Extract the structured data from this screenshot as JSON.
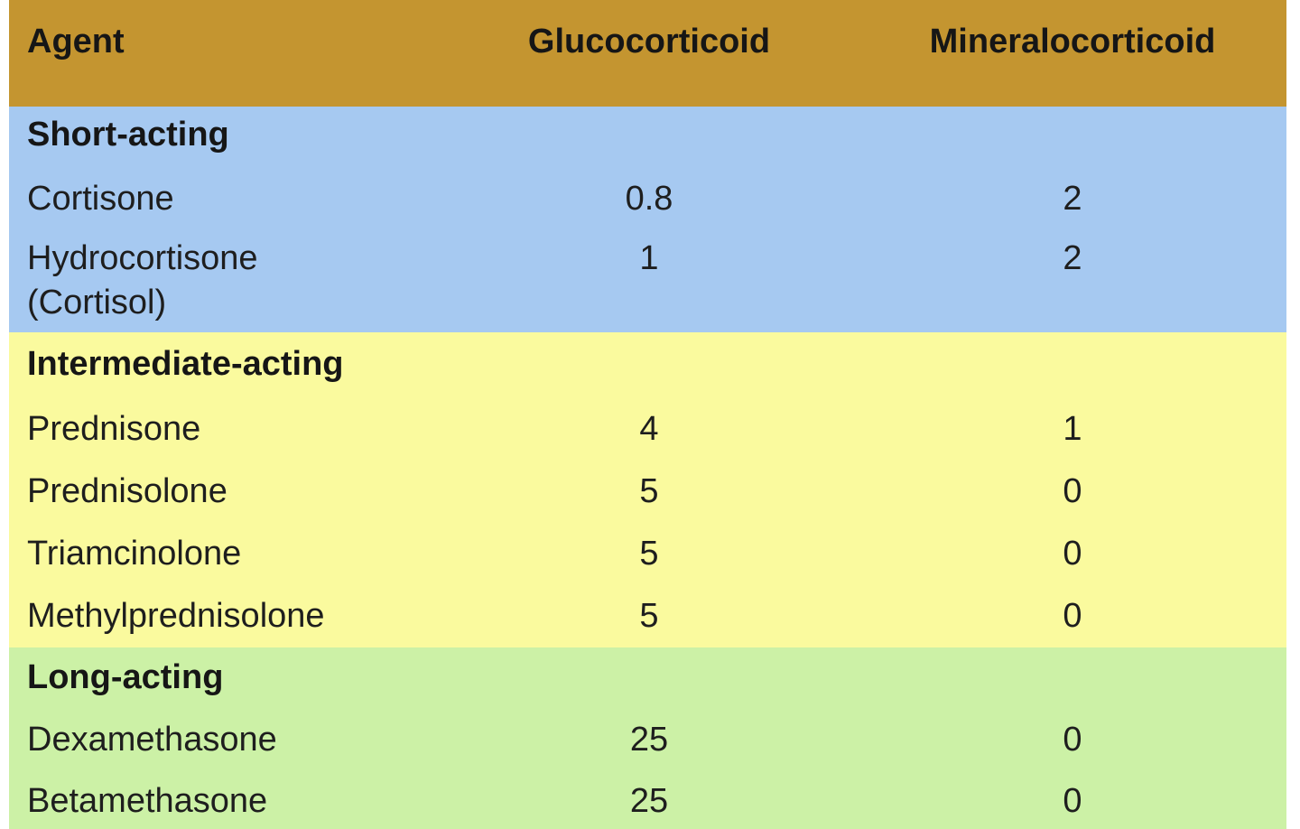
{
  "colors": {
    "header_background": "#c49530",
    "short_acting_background": "#a6c9f1",
    "intermediate_acting_background": "#fafa9e",
    "long_acting_background": "#ccf1a6",
    "text": "#1e1e1e"
  },
  "table": {
    "headers": {
      "agent": "Agent",
      "glucocorticoid": "Glucocorticoid",
      "mineralocorticoid": "Mineralocorticoid"
    },
    "sections": [
      {
        "name": "Short-acting",
        "rows": [
          {
            "agent": "Cortisone",
            "gluco": "0.8",
            "mineralo": "2"
          },
          {
            "agent": "Hydrocortisone\n(Cortisol)",
            "gluco": "1",
            "mineralo": "2"
          }
        ]
      },
      {
        "name": "Intermediate-acting",
        "rows": [
          {
            "agent": "Prednisone",
            "gluco": "4",
            "mineralo": "1"
          },
          {
            "agent": "Prednisolone",
            "gluco": "5",
            "mineralo": "0"
          },
          {
            "agent": "Triamcinolone",
            "gluco": "5",
            "mineralo": "0"
          },
          {
            "agent": "Methylprednisolone",
            "gluco": "5",
            "mineralo": "0"
          }
        ]
      },
      {
        "name": "Long-acting",
        "rows": [
          {
            "agent": "Dexamethasone",
            "gluco": "25",
            "mineralo": "0"
          },
          {
            "agent": "Betamethasone",
            "gluco": "25",
            "mineralo": "0"
          }
        ]
      }
    ]
  },
  "chart_data": {
    "type": "table",
    "columns": [
      "Agent",
      "Glucocorticoid",
      "Mineralocorticoid"
    ],
    "rows": [
      {
        "group": "Short-acting",
        "agent": "Cortisone",
        "glucocorticoid": 0.8,
        "mineralocorticoid": 2
      },
      {
        "group": "Short-acting",
        "agent": "Hydrocortisone (Cortisol)",
        "glucocorticoid": 1,
        "mineralocorticoid": 2
      },
      {
        "group": "Intermediate-acting",
        "agent": "Prednisone",
        "glucocorticoid": 4,
        "mineralocorticoid": 1
      },
      {
        "group": "Intermediate-acting",
        "agent": "Prednisolone",
        "glucocorticoid": 5,
        "mineralocorticoid": 0
      },
      {
        "group": "Intermediate-acting",
        "agent": "Triamcinolone",
        "glucocorticoid": 5,
        "mineralocorticoid": 0
      },
      {
        "group": "Intermediate-acting",
        "agent": "Methylprednisolone",
        "glucocorticoid": 5,
        "mineralocorticoid": 0
      },
      {
        "group": "Long-acting",
        "agent": "Dexamethasone",
        "glucocorticoid": 25,
        "mineralocorticoid": 0
      },
      {
        "group": "Long-acting",
        "agent": "Betamethasone",
        "glucocorticoid": 25,
        "mineralocorticoid": 0
      }
    ]
  }
}
